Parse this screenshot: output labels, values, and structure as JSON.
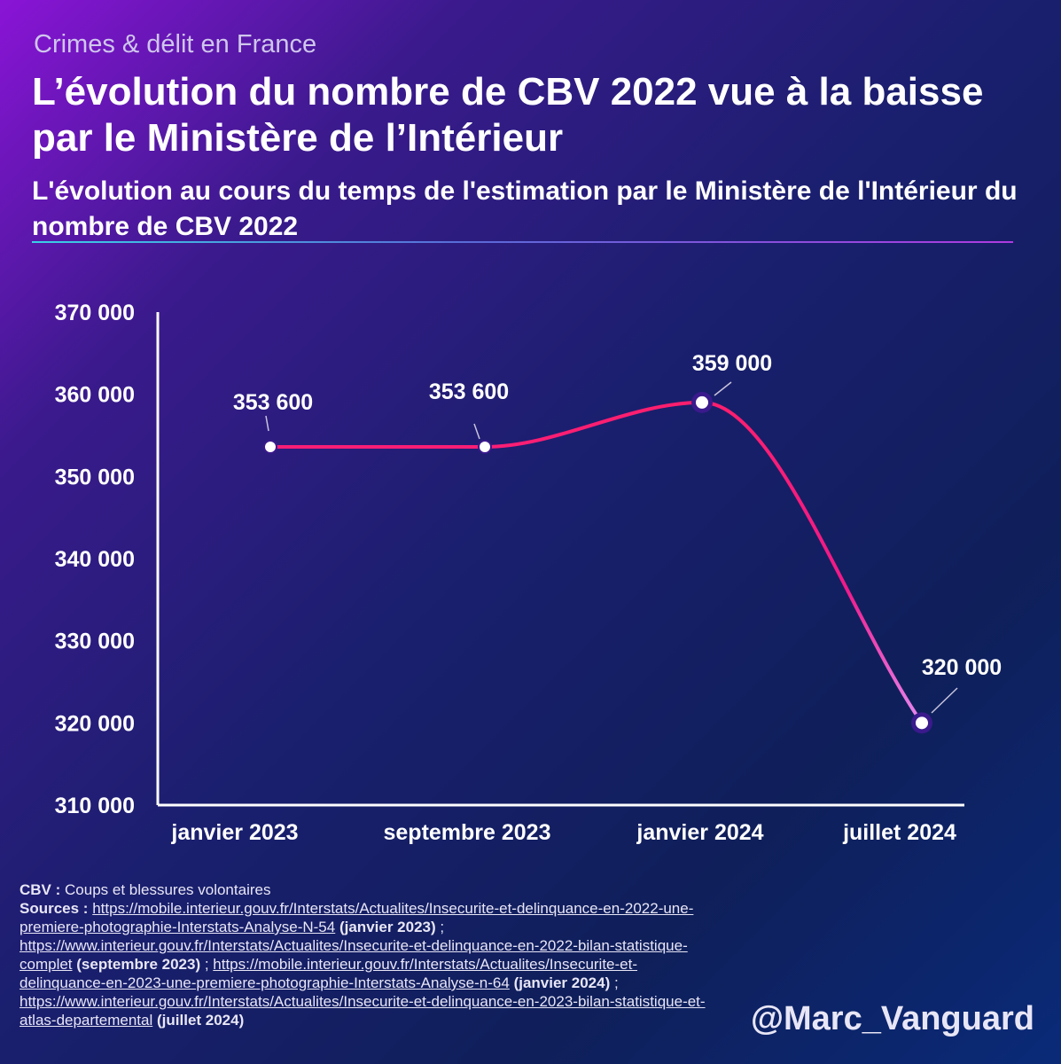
{
  "header": {
    "overline": "Crimes & délit en France",
    "title": "L’évolution du nombre de CBV 2022 vue à la baisse par le Ministère de l’Intérieur",
    "subtitle": "L'évolution au cours du temps de l'estimation par le Ministère de l'Intérieur du nombre de CBV 2022"
  },
  "colors": {
    "line_start": "#ff1f6b",
    "line_mid": "#f01a8a",
    "line_end": "#e58cf5",
    "marker_fill": "#ffffff",
    "marker_ring": "#3a1a8c"
  },
  "chart_data": {
    "type": "line",
    "categories": [
      "janvier 2023",
      "septembre 2023",
      "janvier 2024",
      "juillet 2024"
    ],
    "values": [
      353600,
      353600,
      359000,
      320000
    ],
    "data_labels": [
      "353 600",
      "353 600",
      "359 000",
      "320 000"
    ],
    "ylim": [
      310000,
      370000
    ],
    "yticks": [
      310000,
      320000,
      330000,
      340000,
      350000,
      360000,
      370000
    ],
    "ytick_labels": [
      "310 000",
      "320 000",
      "330 000",
      "340 000",
      "350 000",
      "360 000",
      "370 000"
    ],
    "xlabel": "",
    "ylabel": "",
    "grid": false,
    "legend": "none"
  },
  "footer": {
    "cbv_abbr": "CBV :",
    "cbv_def": " Coups et blessures volontaires",
    "sources_label": "Sources :",
    "sources": [
      {
        "url": "https://mobile.interieur.gouv.fr/Interstats/Actualites/Insecurite-et-delinquance-en-2022-une-premiere-photographie-Interstats-Analyse-N-54",
        "date": "(janvier 2023)"
      },
      {
        "url": "https://www.interieur.gouv.fr/Interstats/Actualites/Insecurite-et-delinquance-en-2022-bilan-statistique-complet",
        "date": "(septembre 2023)"
      },
      {
        "url": "https://mobile.interieur.gouv.fr/Interstats/Actualites/Insecurite-et-delinquance-en-2023-une-premiere-photographie-Interstats-Analyse-n-64",
        "date": "(janvier 2024)"
      },
      {
        "url": "https://www.interieur.gouv.fr/Interstats/Actualites/Insecurite-et-delinquance-en-2023-bilan-statistique-et-atlas-departemental",
        "date": "(juillet 2024)"
      }
    ],
    "separator": " ; "
  },
  "handle": "@Marc_Vanguard"
}
